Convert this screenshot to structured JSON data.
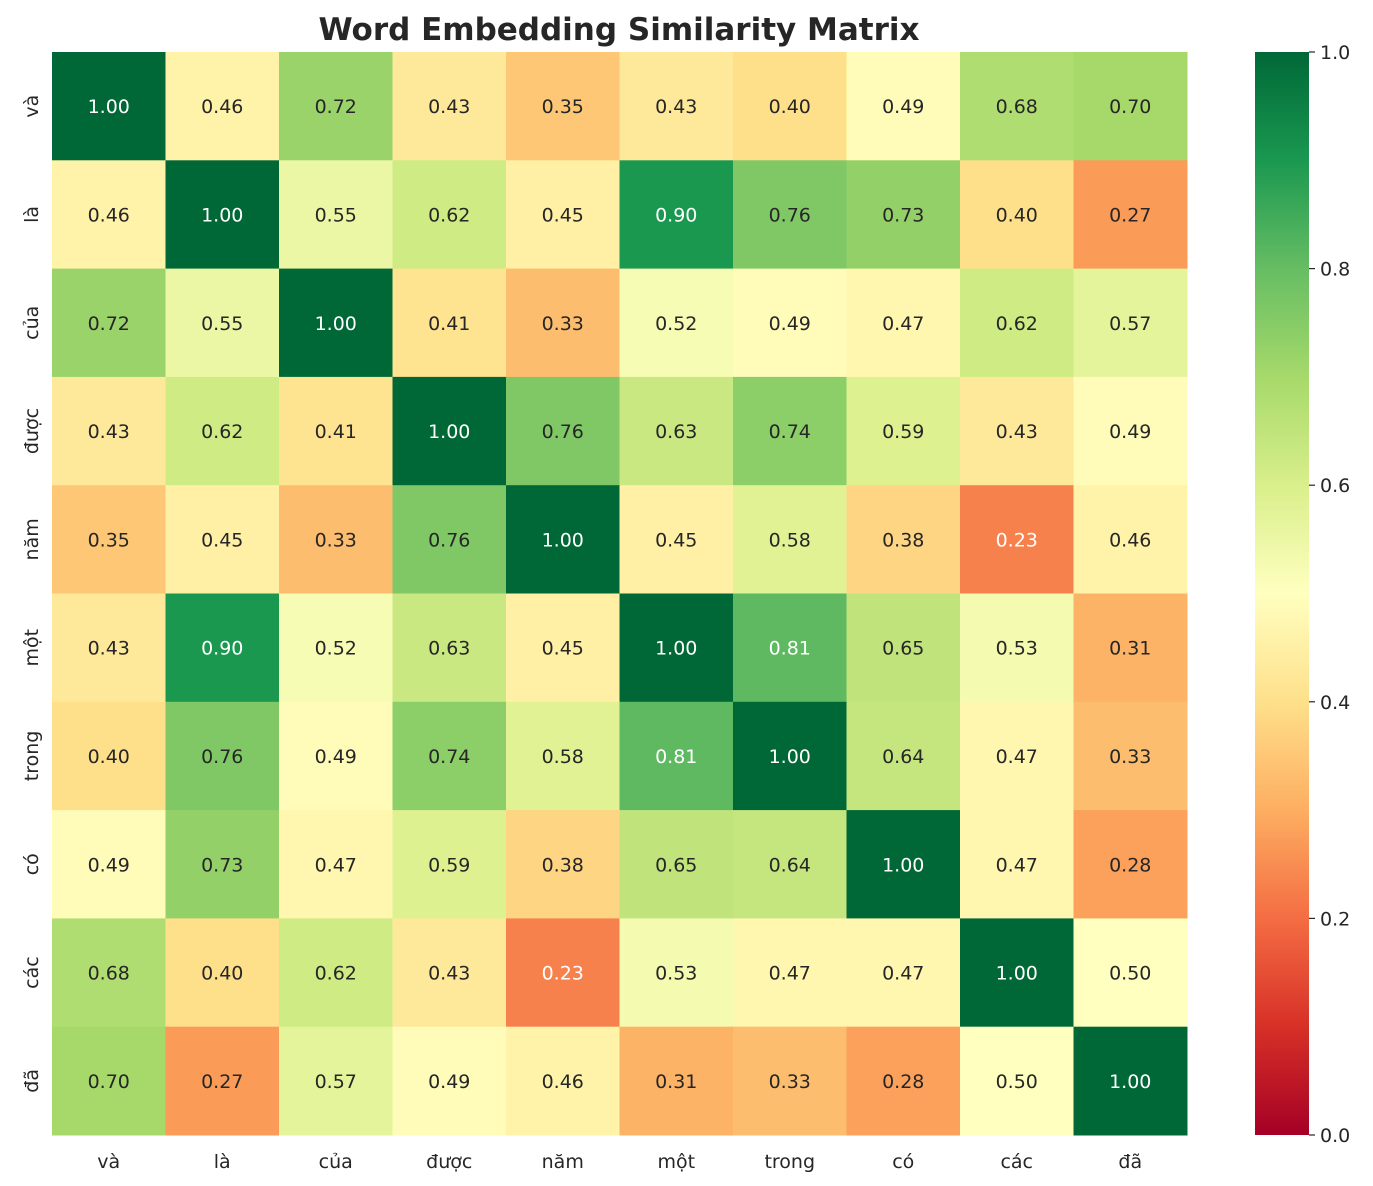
{
  "chart_data": {
    "type": "heatmap",
    "title": "Word Embedding Similarity Matrix",
    "xlabel": "",
    "ylabel": "",
    "x_categories": [
      "và",
      "là",
      "của",
      "được",
      "năm",
      "một",
      "trong",
      "có",
      "các",
      "đã"
    ],
    "y_categories": [
      "và",
      "là",
      "của",
      "được",
      "năm",
      "một",
      "trong",
      "có",
      "các",
      "đã"
    ],
    "values": [
      [
        1.0,
        0.46,
        0.72,
        0.43,
        0.35,
        0.43,
        0.4,
        0.49,
        0.68,
        0.7
      ],
      [
        0.46,
        1.0,
        0.55,
        0.62,
        0.45,
        0.9,
        0.76,
        0.73,
        0.4,
        0.27
      ],
      [
        0.72,
        0.55,
        1.0,
        0.41,
        0.33,
        0.52,
        0.49,
        0.47,
        0.62,
        0.57
      ],
      [
        0.43,
        0.62,
        0.41,
        1.0,
        0.76,
        0.63,
        0.74,
        0.59,
        0.43,
        0.49
      ],
      [
        0.35,
        0.45,
        0.33,
        0.76,
        1.0,
        0.45,
        0.58,
        0.38,
        0.23,
        0.46
      ],
      [
        0.43,
        0.9,
        0.52,
        0.63,
        0.45,
        1.0,
        0.81,
        0.65,
        0.53,
        0.31
      ],
      [
        0.4,
        0.76,
        0.49,
        0.74,
        0.58,
        0.81,
        1.0,
        0.64,
        0.47,
        0.33
      ],
      [
        0.49,
        0.73,
        0.47,
        0.59,
        0.38,
        0.65,
        0.64,
        1.0,
        0.47,
        0.28
      ],
      [
        0.68,
        0.4,
        0.62,
        0.43,
        0.23,
        0.53,
        0.47,
        0.47,
        1.0,
        0.5
      ],
      [
        0.7,
        0.27,
        0.57,
        0.49,
        0.46,
        0.31,
        0.33,
        0.28,
        0.5,
        1.0
      ]
    ],
    "colormap": "RdYlGn",
    "value_range": [
      0.0,
      1.0
    ],
    "colorbar_ticks": [
      "0.0",
      "0.2",
      "0.4",
      "0.6",
      "0.8",
      "1.0"
    ],
    "annotation_format": "0.00",
    "grid": false,
    "colorbar_placement": "right"
  }
}
